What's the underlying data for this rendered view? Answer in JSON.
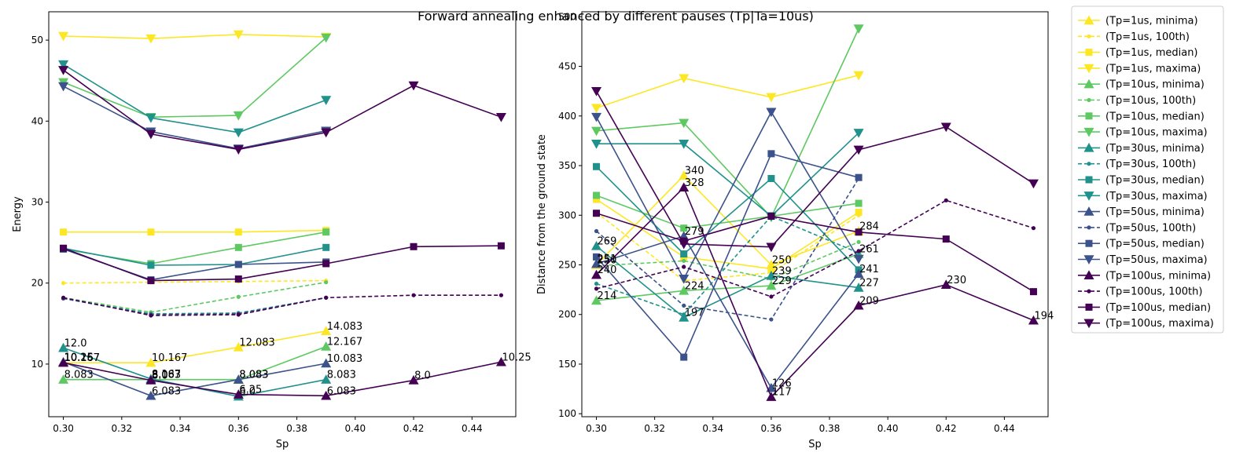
{
  "chart_data": {
    "type": "line",
    "title": "Forward annealing enhanced by different pauses (Tp|Ta=10us)",
    "legend_position": "outside-right-top",
    "series_styles": [
      {
        "name": "(Tp=1us, minima)",
        "color": "#fde725",
        "marker": "triangle-up",
        "dashed": false
      },
      {
        "name": "(Tp=1us, 100th)",
        "color": "#fde725",
        "marker": "dot",
        "dashed": true
      },
      {
        "name": "(Tp=1us, median)",
        "color": "#fde725",
        "marker": "square",
        "dashed": false
      },
      {
        "name": "(Tp=1us, maxima)",
        "color": "#fde725",
        "marker": "triangle-down",
        "dashed": false
      },
      {
        "name": "(Tp=10us, minima)",
        "color": "#5ec962",
        "marker": "triangle-up",
        "dashed": false
      },
      {
        "name": "(Tp=10us, 100th)",
        "color": "#5ec962",
        "marker": "dot",
        "dashed": true
      },
      {
        "name": "(Tp=10us, median)",
        "color": "#5ec962",
        "marker": "square",
        "dashed": false
      },
      {
        "name": "(Tp=10us, maxima)",
        "color": "#5ec962",
        "marker": "triangle-down",
        "dashed": false
      },
      {
        "name": "(Tp=30us, minima)",
        "color": "#21918c",
        "marker": "triangle-up",
        "dashed": false
      },
      {
        "name": "(Tp=30us, 100th)",
        "color": "#21918c",
        "marker": "dot",
        "dashed": true
      },
      {
        "name": "(Tp=30us, median)",
        "color": "#21918c",
        "marker": "square",
        "dashed": false
      },
      {
        "name": "(Tp=30us, maxima)",
        "color": "#21918c",
        "marker": "triangle-down",
        "dashed": false
      },
      {
        "name": "(Tp=50us, minima)",
        "color": "#3b528b",
        "marker": "triangle-up",
        "dashed": false
      },
      {
        "name": "(Tp=50us, 100th)",
        "color": "#3b528b",
        "marker": "dot",
        "dashed": true
      },
      {
        "name": "(Tp=50us, median)",
        "color": "#3b528b",
        "marker": "square",
        "dashed": false
      },
      {
        "name": "(Tp=50us, maxima)",
        "color": "#3b528b",
        "marker": "triangle-down",
        "dashed": false
      },
      {
        "name": "(Tp=100us, minima)",
        "color": "#440154",
        "marker": "triangle-up",
        "dashed": false
      },
      {
        "name": "(Tp=100us, 100th)",
        "color": "#440154",
        "marker": "dot",
        "dashed": true
      },
      {
        "name": "(Tp=100us, median)",
        "color": "#440154",
        "marker": "square",
        "dashed": false
      },
      {
        "name": "(Tp=100us, maxima)",
        "color": "#440154",
        "marker": "triangle-down",
        "dashed": false
      }
    ],
    "panels": [
      {
        "id": "energy",
        "xlabel": "Sp",
        "ylabel": "Energy",
        "xlim": [
          0.295,
          0.455
        ],
        "ylim": [
          3.5,
          53.5
        ],
        "xticks": [
          0.3,
          0.32,
          0.34,
          0.36,
          0.38,
          0.4,
          0.42,
          0.44
        ],
        "yticks": [
          10,
          20,
          30,
          40,
          50
        ],
        "grid": false,
        "series": [
          {
            "x": [
              0.3,
              0.33,
              0.36,
              0.39
            ],
            "y": [
              10.167,
              10.167,
              12.083,
              14.083
            ],
            "labels": [
              "10.167",
              "10.167",
              "12.083",
              "14.083"
            ]
          },
          {
            "x": [
              0.3,
              0.33,
              0.36,
              0.39
            ],
            "y": [
              20.0,
              20.1,
              20.2,
              20.3
            ]
          },
          {
            "x": [
              0.3,
              0.33,
              0.36,
              0.39
            ],
            "y": [
              26.3,
              26.3,
              26.3,
              26.5
            ]
          },
          {
            "x": [
              0.3,
              0.33,
              0.36,
              0.39
            ],
            "y": [
              50.5,
              50.2,
              50.7,
              50.4
            ]
          },
          {
            "x": [
              0.3,
              0.33,
              0.36,
              0.39
            ],
            "y": [
              8.083,
              8.083,
              8.083,
              12.167
            ],
            "labels": [
              "8.083",
              "8.083",
              "8.083",
              "12.167"
            ]
          },
          {
            "x": [
              0.3,
              0.33,
              0.36,
              0.39
            ],
            "y": [
              18.2,
              16.4,
              18.3,
              20.1
            ]
          },
          {
            "x": [
              0.3,
              0.33,
              0.36,
              0.39
            ],
            "y": [
              24.2,
              22.4,
              24.4,
              26.3
            ]
          },
          {
            "x": [
              0.3,
              0.33,
              0.36,
              0.39
            ],
            "y": [
              44.8,
              40.5,
              40.7,
              50.3
            ]
          },
          {
            "x": [
              0.3,
              0.33,
              0.36,
              0.39
            ],
            "y": [
              12.0,
              8.167,
              6.0,
              8.083
            ],
            "labels": [
              "12.0",
              "8.167",
              "6.0",
              "8.083"
            ]
          },
          {
            "x": [
              0.3,
              0.33,
              0.36,
              0.39
            ],
            "y": [
              18.1,
              16.2,
              16.3,
              18.2
            ]
          },
          {
            "x": [
              0.3,
              0.33,
              0.36,
              0.39
            ],
            "y": [
              24.3,
              22.2,
              22.3,
              24.4
            ]
          },
          {
            "x": [
              0.3,
              0.33,
              0.36,
              0.39
            ],
            "y": [
              47.0,
              40.4,
              38.6,
              42.6
            ]
          },
          {
            "x": [
              0.3,
              0.33,
              0.36,
              0.39
            ],
            "y": [
              10.25,
              6.083,
              8.083,
              10.083
            ],
            "labels": [
              "10.25",
              "6.083",
              "8.083",
              "10.083"
            ]
          },
          {
            "x": [
              0.3,
              0.33,
              0.36,
              0.39
            ],
            "y": [
              18.1,
              16.1,
              16.2,
              18.2
            ]
          },
          {
            "x": [
              0.3,
              0.33,
              0.36,
              0.39
            ],
            "y": [
              24.2,
              20.4,
              22.3,
              22.6
            ]
          },
          {
            "x": [
              0.3,
              0.33,
              0.36,
              0.39
            ],
            "y": [
              44.3,
              38.7,
              36.6,
              38.8
            ]
          },
          {
            "x": [
              0.3,
              0.33,
              0.36,
              0.39,
              0.42,
              0.45
            ],
            "y": [
              10.167,
              8.0,
              6.25,
              6.083,
              8.0,
              10.25
            ],
            "labels": [
              "10.167",
              "8.0",
              "6.25",
              "6.083",
              "8.0",
              "10.25"
            ]
          },
          {
            "x": [
              0.3,
              0.33,
              0.36,
              0.39,
              0.42,
              0.45
            ],
            "y": [
              18.2,
              16.0,
              16.1,
              18.2,
              18.5,
              18.5
            ]
          },
          {
            "x": [
              0.3,
              0.33,
              0.36,
              0.39,
              0.42,
              0.45
            ],
            "y": [
              24.3,
              20.3,
              20.5,
              22.4,
              24.5,
              24.6
            ]
          },
          {
            "x": [
              0.3,
              0.33,
              0.36,
              0.39,
              0.42,
              0.45
            ],
            "y": [
              46.3,
              38.4,
              36.5,
              38.6,
              44.4,
              40.5
            ]
          }
        ]
      },
      {
        "id": "distance",
        "xlabel": "Sp",
        "ylabel": "Distance from the ground state",
        "xlim": [
          0.295,
          0.455
        ],
        "ylim": [
          97,
          505
        ],
        "xticks": [
          0.3,
          0.32,
          0.34,
          0.36,
          0.38,
          0.4,
          0.42,
          0.44
        ],
        "yticks": [
          100,
          150,
          200,
          250,
          300,
          350,
          400,
          450,
          500
        ],
        "grid": false,
        "series": [
          {
            "x": [
              0.3,
              0.33,
              0.36,
              0.39
            ],
            "y": [
              250,
              340,
              250,
              284
            ],
            "labels": [
              "250",
              "340",
              "250",
              "284"
            ]
          },
          {
            "x": [
              0.3,
              0.33,
              0.36,
              0.39
            ],
            "y": [
              303,
              234,
              242,
              300
            ]
          },
          {
            "x": [
              0.3,
              0.33,
              0.36,
              0.39
            ],
            "y": [
              316,
              258,
              246,
              303
            ]
          },
          {
            "x": [
              0.3,
              0.33,
              0.36,
              0.39
            ],
            "y": [
              408,
              438,
              419,
              441
            ]
          },
          {
            "x": [
              0.3,
              0.33,
              0.36,
              0.39
            ],
            "y": [
              214,
              224,
              229,
              261
            ],
            "labels": [
              "214",
              "224",
              "229",
              "261"
            ]
          },
          {
            "x": [
              0.3,
              0.33,
              0.36,
              0.39
            ],
            "y": [
              249,
              254,
              236,
              273
            ]
          },
          {
            "x": [
              0.3,
              0.33,
              0.36,
              0.39
            ],
            "y": [
              320,
              287,
              299,
              312
            ]
          },
          {
            "x": [
              0.3,
              0.33,
              0.36,
              0.39
            ],
            "y": [
              385,
              393,
              298,
              488
            ]
          },
          {
            "x": [
              0.3,
              0.33,
              0.36,
              0.39
            ],
            "y": [
              269,
              197,
              239,
              227
            ],
            "labels": [
              "269",
              "197",
              "239",
              "227"
            ]
          },
          {
            "x": [
              0.3,
              0.33,
              0.36,
              0.39
            ],
            "y": [
              231,
              200,
              299,
              262
            ]
          },
          {
            "x": [
              0.3,
              0.33,
              0.36,
              0.39
            ],
            "y": [
              349,
              261,
              337,
              245
            ]
          },
          {
            "x": [
              0.3,
              0.33,
              0.36,
              0.39
            ],
            "y": [
              372,
              372,
              299,
              383
            ]
          },
          {
            "x": [
              0.3,
              0.33,
              0.36,
              0.39
            ],
            "y": [
              251,
              279,
              126,
              241
            ],
            "labels": [
              "251",
              "279",
              "126",
              "241"
            ]
          },
          {
            "x": [
              0.3,
              0.33,
              0.36,
              0.39
            ],
            "y": [
              284,
              209,
              195,
              337
            ]
          },
          {
            "x": [
              0.3,
              0.33,
              0.36,
              0.39
            ],
            "y": [
              258,
              157,
              362,
              338
            ]
          },
          {
            "x": [
              0.3,
              0.33,
              0.36,
              0.39
            ],
            "y": [
              399,
              236,
              404,
              256
            ]
          },
          {
            "x": [
              0.3,
              0.33,
              0.36,
              0.39,
              0.42,
              0.45
            ],
            "y": [
              240,
              328,
              117,
              209,
              230,
              194
            ],
            "labels": [
              "240",
              "328",
              "117",
              "209",
              "230",
              "194"
            ]
          },
          {
            "x": [
              0.3,
              0.33,
              0.36,
              0.39,
              0.42,
              0.45
            ],
            "y": [
              226,
              248,
              218,
              264,
              315,
              287
            ]
          },
          {
            "x": [
              0.3,
              0.33,
              0.36,
              0.39,
              0.42,
              0.45
            ],
            "y": [
              302,
              274,
              299,
              283,
              276,
              223
            ]
          },
          {
            "x": [
              0.3,
              0.33,
              0.36,
              0.39,
              0.42,
              0.45
            ],
            "y": [
              425,
              271,
              268,
              366,
              389,
              332
            ]
          }
        ]
      }
    ]
  }
}
